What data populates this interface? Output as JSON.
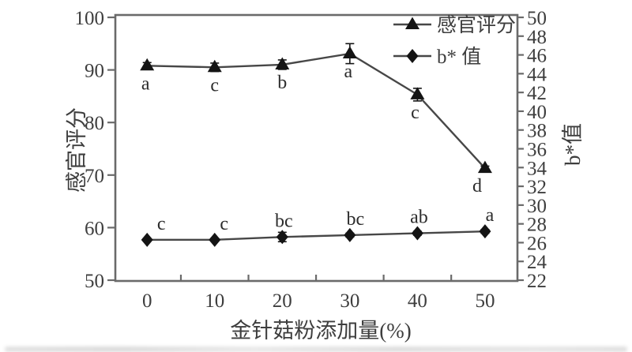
{
  "figure": {
    "background": "#ffffff",
    "colors": {
      "axis": "#6a6a6a",
      "tick_text": "#3e3e3e",
      "marker": "#141414",
      "line": "#474747"
    }
  },
  "chart_data": {
    "type": "line",
    "title": "",
    "x": [
      0,
      10,
      20,
      30,
      40,
      50
    ],
    "xlabel": "金针菇粉添加量(%)",
    "xlim": [
      -4.7,
      54.8
    ],
    "x_tick_labels": [
      "0",
      "10",
      "20",
      "30",
      "40",
      "50"
    ],
    "x_minor_ticks": [
      5,
      15,
      25,
      35,
      45
    ],
    "grid": false,
    "left_axis": {
      "label": "感官评分",
      "range": [
        50,
        100
      ],
      "ticks": [
        50,
        60,
        70,
        80,
        90,
        100
      ]
    },
    "right_axis": {
      "label": "b*值",
      "range": [
        22,
        50
      ],
      "ticks": [
        22,
        24,
        26,
        28,
        30,
        32,
        34,
        36,
        38,
        40,
        42,
        44,
        46,
        48,
        50
      ]
    },
    "legend": {
      "position": "top-right-inside",
      "entries": [
        {
          "label": "感官评分",
          "marker": "triangle"
        },
        {
          "label": "b* 值",
          "marker": "diamond"
        }
      ]
    },
    "series": [
      {
        "name": "感官评分",
        "axis": "left",
        "marker": "triangle",
        "values": [
          90.8,
          90.5,
          91.0,
          93.1,
          85.3,
          71.3
        ],
        "errors": [
          0.6,
          0.8,
          0.9,
          1.9,
          1.2,
          0.4
        ],
        "letters": [
          "a",
          "c",
          "b",
          "a",
          "c",
          "d"
        ],
        "letters_position": "below"
      },
      {
        "name": "b* 值",
        "axis": "right",
        "marker": "diamond",
        "values": [
          26.3,
          26.3,
          26.6,
          26.8,
          27.0,
          27.2
        ],
        "errors": [
          0.15,
          0.15,
          0.5,
          0.2,
          0.2,
          0.2
        ],
        "letters": [
          "c",
          "c",
          "bc",
          "bc",
          "ab",
          "a"
        ],
        "letters_position": "above"
      }
    ]
  }
}
